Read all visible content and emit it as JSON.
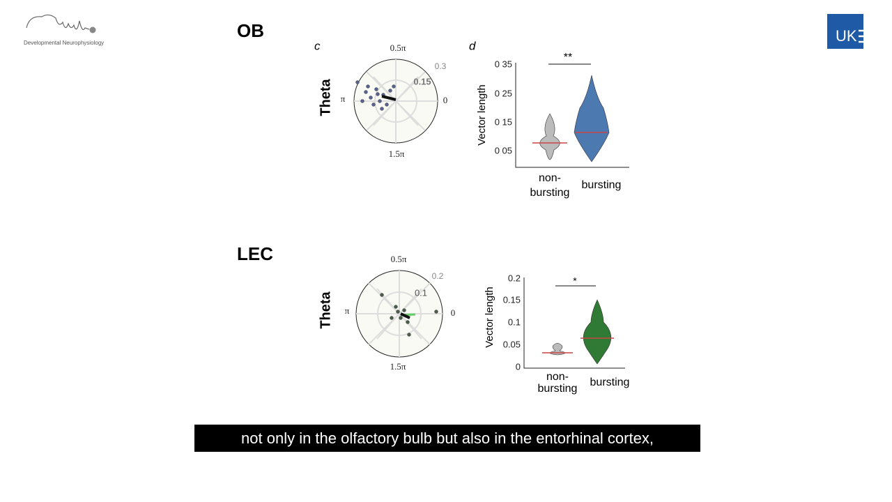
{
  "logo": {
    "text": "Developmental Neurophysiology",
    "badge": "UK"
  },
  "sections": [
    {
      "title": "OB",
      "polar": {
        "panel": "c",
        "ylabel": "Theta",
        "top": "0.5π",
        "left": "π",
        "right": "0",
        "bottom": "1.5π",
        "ring_outer": "0.3",
        "ring_inner": "0.15"
      },
      "violin": {
        "panel": "d",
        "ylabel": "Vector length",
        "yticks": [
          "0 35",
          "0 25",
          "0 15",
          "0 05"
        ],
        "significance": "**",
        "categories": [
          [
            "non-",
            "bursting"
          ],
          [
            "bursting"
          ]
        ]
      }
    },
    {
      "title": "LEC",
      "polar": {
        "ylabel": "Theta",
        "top": "0.5π",
        "left": "π",
        "right": "0",
        "bottom": "1.5π",
        "ring_outer": "0.2",
        "ring_inner": "0.1"
      },
      "violin": {
        "ylabel": "Vector length",
        "yticks": [
          "0.2",
          "0.15",
          "0.1",
          "0.05",
          "0"
        ],
        "significance": "*",
        "categories": [
          [
            "non-",
            "bursting"
          ],
          [
            "bursting"
          ]
        ]
      }
    }
  ],
  "subtitle": "not only in the olfactory bulb but also in the entorhinal cortex,"
}
